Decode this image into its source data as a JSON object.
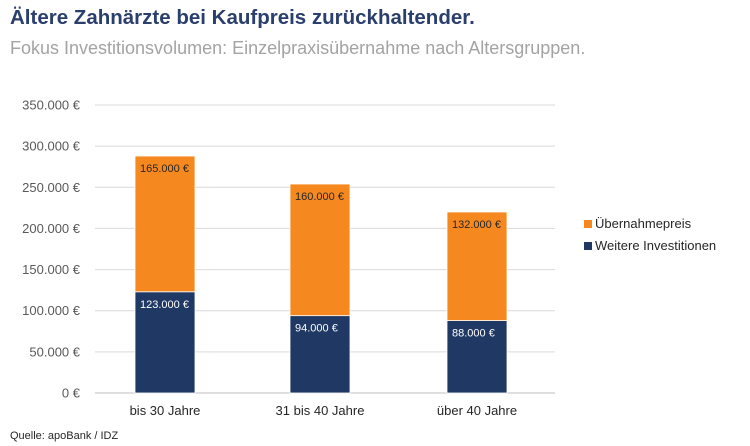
{
  "header": {
    "title": "Ältere Zahnärzte bei Kaufpreis zurückhaltender.",
    "subtitle": "Fokus Investitionsvolumen: Einzelpraxisübernahme nach Altersgruppen."
  },
  "source": "Quelle: apoBank / IDZ",
  "chart_data": {
    "type": "bar",
    "stacked": true,
    "categories": [
      "bis 30 Jahre",
      "31 bis 40 Jahre",
      "über 40 Jahre"
    ],
    "series": [
      {
        "name": "Weitere Investitionen",
        "values": [
          123000,
          94000,
          88000
        ],
        "labels": [
          "123.000 €",
          "94.000 €",
          "88.000 €"
        ],
        "color": "#1f3864"
      },
      {
        "name": "Übernahmepreis",
        "values": [
          165000,
          160000,
          132000
        ],
        "labels": [
          "165.000 €",
          "160.000 €",
          "132.000 €"
        ],
        "color": "#f5891f"
      }
    ],
    "ylim": [
      0,
      350000
    ],
    "yticks": [
      0,
      50000,
      100000,
      150000,
      200000,
      250000,
      300000,
      350000
    ],
    "ytick_labels": [
      "0 €",
      "50.000 €",
      "100.000 €",
      "150.000 €",
      "200.000 €",
      "250.000 €",
      "300.000 €",
      "350.000 €"
    ],
    "grid": true,
    "legend_position": "right",
    "legend_order": [
      "Übernahmepreis",
      "Weitere Investitionen"
    ]
  }
}
